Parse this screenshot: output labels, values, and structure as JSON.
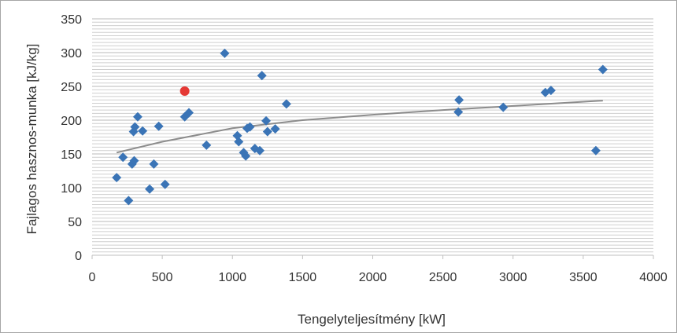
{
  "chart_data": {
    "type": "scatter",
    "xlabel": "Tengelyteljesítmény [kW]",
    "ylabel": "Fajlagos hasznos-munka [kJ/kg]",
    "xlim": [
      0,
      4000
    ],
    "ylim": [
      0,
      350
    ],
    "x_ticks": [
      "0",
      "500",
      "1000",
      "1500",
      "2000",
      "2500",
      "3000",
      "3500",
      "4000"
    ],
    "y_ticks": [
      "0",
      "50",
      "100",
      "150",
      "200",
      "250",
      "300",
      "350"
    ],
    "grid": "horizontal",
    "colors": {
      "points": "#3a74b6",
      "highlight": "#e53935",
      "trend": "#8c8c8c",
      "grid": "#cfcfcf"
    },
    "points": [
      [
        175,
        115
      ],
      [
        220,
        145
      ],
      [
        260,
        81
      ],
      [
        285,
        135
      ],
      [
        295,
        183
      ],
      [
        300,
        140
      ],
      [
        305,
        190
      ],
      [
        325,
        205
      ],
      [
        360,
        184
      ],
      [
        410,
        98
      ],
      [
        440,
        135
      ],
      [
        475,
        191
      ],
      [
        520,
        105
      ],
      [
        660,
        205
      ],
      [
        690,
        211
      ],
      [
        815,
        163
      ],
      [
        945,
        299
      ],
      [
        1035,
        177
      ],
      [
        1045,
        168
      ],
      [
        1080,
        152
      ],
      [
        1095,
        147
      ],
      [
        1105,
        188
      ],
      [
        1125,
        190
      ],
      [
        1160,
        158
      ],
      [
        1195,
        155
      ],
      [
        1210,
        266
      ],
      [
        1240,
        199
      ],
      [
        1250,
        183
      ],
      [
        1305,
        187
      ],
      [
        1385,
        224
      ],
      [
        2610,
        212
      ],
      [
        2615,
        230
      ],
      [
        2930,
        219
      ],
      [
        3230,
        241
      ],
      [
        3270,
        244
      ],
      [
        3590,
        155
      ],
      [
        3640,
        275
      ]
    ],
    "highlight_point": [
      660,
      243
    ],
    "trendline": {
      "type": "logarithmic",
      "points": [
        [
          175,
          152
        ],
        [
          500,
          168
        ],
        [
          1000,
          188
        ],
        [
          1500,
          200
        ],
        [
          2000,
          208
        ],
        [
          2500,
          215
        ],
        [
          3000,
          221
        ],
        [
          3640,
          229
        ]
      ]
    }
  }
}
